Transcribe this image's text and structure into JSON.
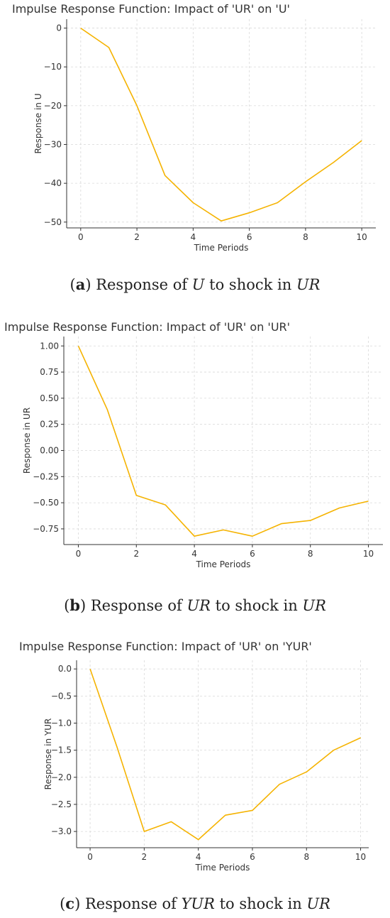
{
  "colors": {
    "series": "#f5b301"
  },
  "chart_data": [
    {
      "type": "line",
      "title": "Impulse Response Function: Impact of 'UR' on 'U'",
      "xlabel": "Time Periods",
      "ylabel": "Response in U",
      "x": [
        0,
        1,
        2,
        3,
        4,
        5,
        6,
        7,
        8,
        9,
        10
      ],
      "series": [
        {
          "values": [
            0,
            -5,
            -20,
            -38,
            -45,
            -49.7,
            -47.6,
            -45,
            -39.6,
            -34.6,
            -29
          ]
        }
      ],
      "xlim": [
        -0.5,
        10.5
      ],
      "ylim": [
        -51.5,
        2.3
      ],
      "xticks": [
        0,
        2,
        4,
        6,
        8,
        10
      ],
      "yticks": [
        0,
        -10,
        -20,
        -30,
        -40,
        -50
      ],
      "xtick_labels": [
        "0",
        "2",
        "4",
        "6",
        "8",
        "10"
      ],
      "ytick_labels": [
        "0",
        "−10",
        "−20",
        "−30",
        "−40",
        "−50"
      ],
      "grid": true,
      "caption": {
        "letter": "a",
        "text1": " Response of ",
        "var1": "U",
        "text2": " to shock in ",
        "var2": "UR"
      }
    },
    {
      "type": "line",
      "title": "Impulse Response Function: Impact of 'UR' on 'UR'",
      "xlabel": "Time Periods",
      "ylabel": "Response in UR",
      "x": [
        0,
        1,
        2,
        3,
        4,
        5,
        6,
        7,
        8,
        9,
        10
      ],
      "series": [
        {
          "values": [
            1.0,
            0.39,
            -0.43,
            -0.52,
            -0.82,
            -0.76,
            -0.82,
            -0.7,
            -0.67,
            -0.55,
            -0.485
          ]
        }
      ],
      "xlim": [
        -0.5,
        10.5
      ],
      "ylim": [
        -0.9,
        1.09
      ],
      "xticks": [
        0,
        2,
        4,
        6,
        8,
        10
      ],
      "yticks": [
        1.0,
        0.75,
        0.5,
        0.25,
        0,
        -0.25,
        -0.5,
        -0.75
      ],
      "xtick_labels": [
        "0",
        "2",
        "4",
        "6",
        "8",
        "10"
      ],
      "ytick_labels": [
        "1.00",
        "0.75",
        "0.50",
        "0.25",
        "0.00",
        "−0.25",
        "−0.50",
        "−0.75"
      ],
      "grid": true,
      "caption": {
        "letter": "b",
        "text1": " Response of ",
        "var1": "UR",
        "text2": " to shock in ",
        "var2": "UR"
      }
    },
    {
      "type": "line",
      "title": "Impulse Response Function: Impact of 'UR' on 'YUR'",
      "xlabel": "Time Periods",
      "ylabel": "Response in YUR",
      "x": [
        0,
        1,
        2,
        3,
        4,
        5,
        6,
        7,
        8,
        9,
        10
      ],
      "series": [
        {
          "values": [
            0,
            -1.45,
            -3.0,
            -2.82,
            -3.15,
            -2.7,
            -2.61,
            -2.13,
            -1.9,
            -1.5,
            -1.27
          ]
        }
      ],
      "xlim": [
        -0.5,
        10.3
      ],
      "ylim": [
        -3.3,
        0.16
      ],
      "xticks": [
        0,
        2,
        4,
        6,
        8,
        10
      ],
      "yticks": [
        0,
        -0.5,
        -1.0,
        -1.5,
        -2.0,
        -2.5,
        -3.0
      ],
      "xtick_labels": [
        "0",
        "2",
        "4",
        "6",
        "8",
        "10"
      ],
      "ytick_labels": [
        "0.0",
        "−0.5",
        "−1.0",
        "−1.5",
        "−2.0",
        "−2.5",
        "−3.0"
      ],
      "grid": true,
      "caption": {
        "letter": "c",
        "text1": " Response of ",
        "var1": "YUR",
        "text2": " to shock in ",
        "var2": "UR"
      }
    }
  ]
}
